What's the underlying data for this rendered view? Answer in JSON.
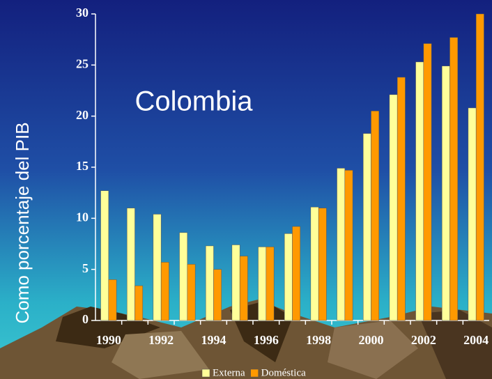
{
  "chart_data": {
    "type": "bar",
    "annotation": "Colombia",
    "y_label": "Como porcentaje del PIB",
    "categories": [
      "1990",
      null,
      "1992",
      null,
      "1994",
      null,
      "1996",
      null,
      "1998",
      null,
      "2000",
      null,
      "2002",
      null,
      "2004"
    ],
    "series": [
      {
        "name": "Externa",
        "color": "#ffff99",
        "values": [
          12.7,
          11.0,
          10.4,
          8.6,
          7.3,
          7.4,
          7.2,
          8.5,
          11.1,
          14.9,
          18.3,
          22.1,
          25.3,
          24.9,
          20.8
        ]
      },
      {
        "name": "Doméstica",
        "color": "#ff9900",
        "values": [
          4.0,
          3.4,
          5.7,
          5.5,
          5.0,
          6.3,
          7.2,
          9.2,
          11.0,
          14.7,
          20.5,
          23.8,
          27.1,
          27.7,
          30.0
        ]
      }
    ],
    "ylim": [
      0,
      30
    ],
    "yticks": [
      0,
      5,
      10,
      15,
      20,
      25,
      30
    ]
  }
}
